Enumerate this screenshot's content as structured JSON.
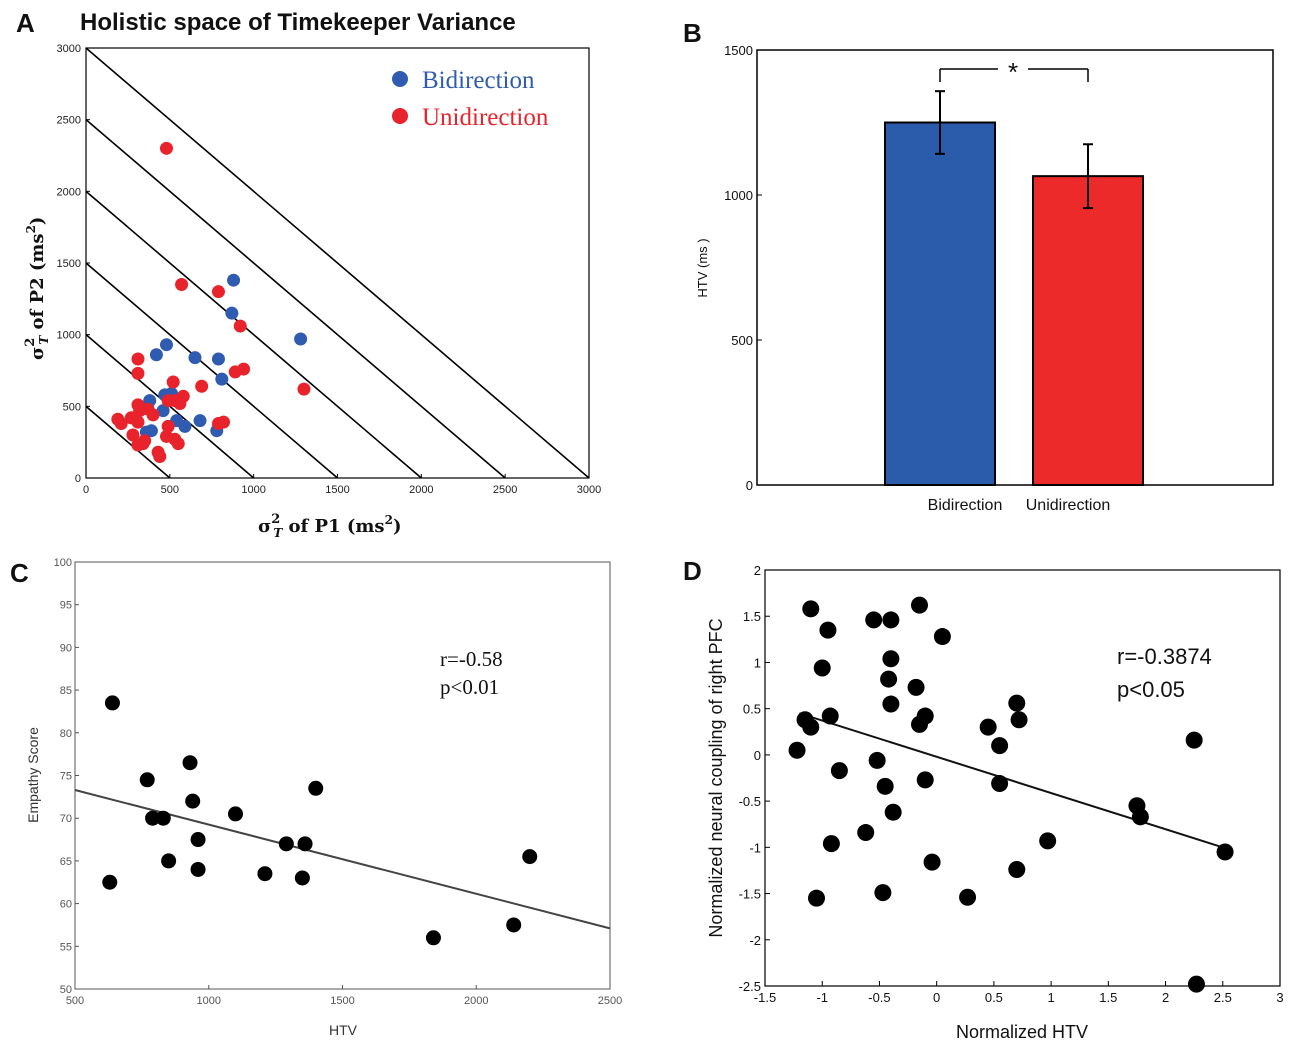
{
  "chart_data": [
    {
      "panel": "A",
      "type": "scatter",
      "title": "Holistic space of Timekeeper Variance",
      "xlabel_main": "σ",
      "xlabel_sup": "2",
      "xlabel_sub": "T",
      "xlabel_rest": " of P1 (ms",
      "xlabel_unit_sup": "2",
      "xlabel_end": ")",
      "ylabel_main": "σ",
      "ylabel_sup": "2",
      "ylabel_sub": "T",
      "ylabel_rest": " of P2 (ms",
      "ylabel_unit_sup": "2",
      "ylabel_end": ")",
      "xlim": [
        0,
        3000
      ],
      "ylim": [
        0,
        3000
      ],
      "xticks": [
        "0",
        "500",
        "1000",
        "1500",
        "2000",
        "2500",
        "3000"
      ],
      "yticks": [
        "0",
        "500",
        "1000",
        "1500",
        "2000",
        "2500",
        "3000"
      ],
      "iso_lines": [
        500,
        1000,
        1500,
        2000,
        2500,
        3000
      ],
      "legend_position": "top-right",
      "series": [
        {
          "name": "Bidirection",
          "color": "#2f5cb0",
          "points": [
            [
              880,
              1380
            ],
            [
              870,
              1150
            ],
            [
              1280,
              970
            ],
            [
              480,
              930
            ],
            [
              420,
              860
            ],
            [
              650,
              840
            ],
            [
              790,
              830
            ],
            [
              810,
              690
            ],
            [
              510,
              590
            ],
            [
              470,
              580
            ],
            [
              380,
              540
            ],
            [
              360,
              490
            ],
            [
              460,
              470
            ],
            [
              540,
              400
            ],
            [
              590,
              360
            ],
            [
              680,
              400
            ],
            [
              780,
              330
            ],
            [
              390,
              330
            ],
            [
              360,
              320
            ]
          ]
        },
        {
          "name": "Unidirection",
          "color": "#e8232b",
          "points": [
            [
              480,
              2300
            ],
            [
              570,
              1350
            ],
            [
              790,
              1300
            ],
            [
              920,
              1060
            ],
            [
              310,
              830
            ],
            [
              310,
              730
            ],
            [
              890,
              740
            ],
            [
              940,
              760
            ],
            [
              1300,
              620
            ],
            [
              520,
              670
            ],
            [
              690,
              640
            ],
            [
              580,
              570
            ],
            [
              310,
              510
            ],
            [
              530,
              540
            ],
            [
              490,
              540
            ],
            [
              560,
              520
            ],
            [
              370,
              480
            ],
            [
              320,
              470
            ],
            [
              400,
              440
            ],
            [
              190,
              410
            ],
            [
              270,
              420
            ],
            [
              210,
              380
            ],
            [
              310,
              390
            ],
            [
              490,
              360
            ],
            [
              820,
              390
            ],
            [
              790,
              380
            ],
            [
              280,
              300
            ],
            [
              350,
              260
            ],
            [
              530,
              270
            ],
            [
              480,
              290
            ],
            [
              340,
              240
            ],
            [
              310,
              230
            ],
            [
              430,
              180
            ],
            [
              440,
              150
            ],
            [
              550,
              240
            ]
          ]
        }
      ]
    },
    {
      "panel": "B",
      "type": "bar",
      "categories": [
        "Bidirection",
        "Unidirection"
      ],
      "values": [
        1250,
        1065
      ],
      "errors": [
        108,
        110
      ],
      "colors": [
        "#2a5cab",
        "#ed2a2a"
      ],
      "ylabel": "HTV (ms )",
      "ylim": [
        0,
        1500
      ],
      "yticks": [
        "0",
        "500",
        "1000",
        "1500"
      ],
      "significance": "*"
    },
    {
      "panel": "C",
      "type": "scatter",
      "xlabel": "HTV",
      "ylabel": "Empathy Score",
      "xlim": [
        500,
        2500
      ],
      "ylim": [
        50,
        100
      ],
      "xticks": [
        "500",
        "1000",
        "1500",
        "2000",
        "2500"
      ],
      "yticks": [
        "50",
        "55",
        "60",
        "65",
        "70",
        "75",
        "80",
        "85",
        "90",
        "95",
        "100"
      ],
      "annotation": [
        "r=-0.58",
        "p<0.01"
      ],
      "fit_line": [
        [
          500,
          73.3
        ],
        [
          2500,
          57.1
        ]
      ],
      "points": [
        [
          640,
          83.5
        ],
        [
          630,
          62.5
        ],
        [
          770,
          74.5
        ],
        [
          790,
          70
        ],
        [
          830,
          70
        ],
        [
          850,
          65
        ],
        [
          930,
          76.5
        ],
        [
          940,
          72
        ],
        [
          960,
          67.5
        ],
        [
          960,
          64
        ],
        [
          1100,
          70.5
        ],
        [
          1210,
          63.5
        ],
        [
          1290,
          67
        ],
        [
          1350,
          63
        ],
        [
          1360,
          67
        ],
        [
          1400,
          73.5
        ],
        [
          1840,
          56
        ],
        [
          2140,
          57.5
        ],
        [
          2200,
          65.5
        ]
      ]
    },
    {
      "panel": "D",
      "type": "scatter",
      "xlabel": "Normalized HTV",
      "ylabel": "Normalized neural coupling of right PFC",
      "xlim": [
        -1.5,
        3
      ],
      "ylim": [
        -2.5,
        2
      ],
      "xticks": [
        "-1.5",
        "-1",
        "-0.5",
        "0",
        "0.5",
        "1",
        "1.5",
        "2",
        "2.5",
        "3"
      ],
      "yticks": [
        "-2.5",
        "-2",
        "-1.5",
        "-1",
        "-0.5",
        "0",
        "0.5",
        "1",
        "1.5",
        "2"
      ],
      "annotation": [
        "r=-0.3874",
        "p<0.05"
      ],
      "fit_line": [
        [
          -1.2,
          0.45
        ],
        [
          2.55,
          -1.02
        ]
      ],
      "points": [
        [
          -1.1,
          1.58
        ],
        [
          -0.55,
          1.46
        ],
        [
          -0.4,
          1.46
        ],
        [
          -0.15,
          1.62
        ],
        [
          -0.95,
          1.35
        ],
        [
          0.05,
          1.28
        ],
        [
          -1.0,
          0.94
        ],
        [
          -0.4,
          1.04
        ],
        [
          -0.42,
          0.82
        ],
        [
          -0.18,
          0.73
        ],
        [
          -0.4,
          0.55
        ],
        [
          -1.15,
          0.38
        ],
        [
          -1.1,
          0.3
        ],
        [
          -0.93,
          0.42
        ],
        [
          -0.1,
          0.42
        ],
        [
          -0.15,
          0.33
        ],
        [
          0.45,
          0.3
        ],
        [
          0.7,
          0.56
        ],
        [
          0.72,
          0.38
        ],
        [
          0.55,
          0.1
        ],
        [
          -1.22,
          0.05
        ],
        [
          -0.52,
          -0.06
        ],
        [
          -0.85,
          -0.17
        ],
        [
          -0.45,
          -0.34
        ],
        [
          -0.1,
          -0.27
        ],
        [
          0.55,
          -0.31
        ],
        [
          -0.38,
          -0.62
        ],
        [
          -0.62,
          -0.84
        ],
        [
          -0.92,
          -0.96
        ],
        [
          0.97,
          -0.93
        ],
        [
          -0.04,
          -1.16
        ],
        [
          0.7,
          -1.24
        ],
        [
          -1.05,
          -1.55
        ],
        [
          -0.47,
          -1.49
        ],
        [
          0.27,
          -1.54
        ],
        [
          2.25,
          0.16
        ],
        [
          1.75,
          -0.55
        ],
        [
          1.78,
          -0.67
        ],
        [
          2.52,
          -1.05
        ],
        [
          2.27,
          -2.48
        ]
      ]
    }
  ]
}
